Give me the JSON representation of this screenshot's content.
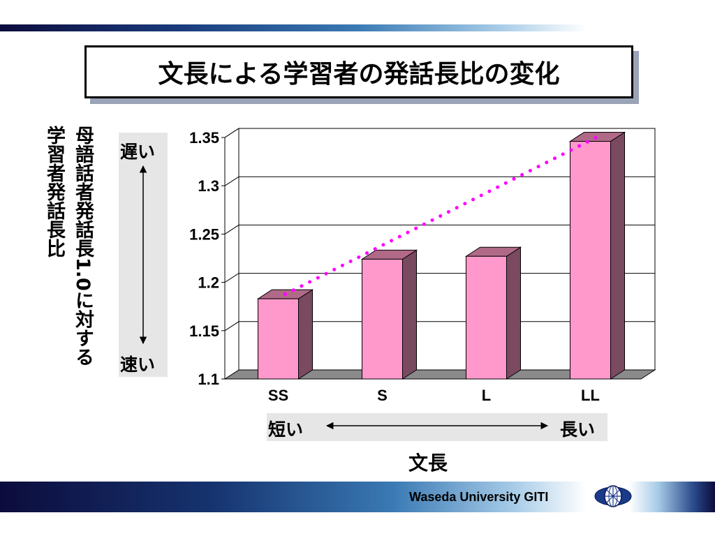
{
  "slide": {
    "title": "文長による学習者の発話長比の変化",
    "footer": "Waseda University GITI"
  },
  "labels": {
    "ylabel_line1": "母語話者発話長1.0に対する",
    "ylabel_line2": "学習者発話長比",
    "slow": "遅い",
    "fast": "速い",
    "short": "短い",
    "long": "長い"
  },
  "chart_data": {
    "type": "bar",
    "title": "",
    "xlabel": "文長",
    "ylabel": "母語話者発話長1.0に対する学習者発話長比",
    "categories": [
      "SS",
      "S",
      "L",
      "LL"
    ],
    "values": [
      1.183,
      1.224,
      1.227,
      1.346
    ],
    "ylim": [
      1.1,
      1.35
    ],
    "yticks": [
      "1.1",
      "1.15",
      "1.2",
      "1.25",
      "1.3",
      "1.35"
    ],
    "grid": true,
    "trendline": true,
    "colors": {
      "bar_front": "#ff99cc",
      "bar_side": "#7a4a60",
      "bar_top": "#b06a88",
      "trend": "#ff00ff"
    }
  }
}
